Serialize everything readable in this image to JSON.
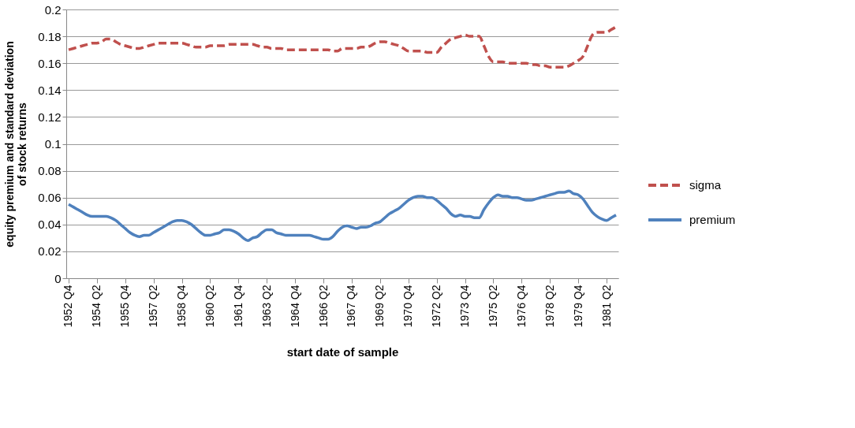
{
  "chart_data": {
    "type": "line",
    "xlabel": "start date of sample",
    "ylabel": "equity premium and standard deviation of stock returns",
    "categories": [
      "1952 Q4",
      null,
      null,
      null,
      null,
      null,
      "1954 Q2",
      null,
      null,
      null,
      null,
      null,
      "1955 Q4",
      null,
      null,
      null,
      null,
      null,
      "1957 Q2",
      null,
      null,
      null,
      null,
      null,
      "1958 Q4",
      null,
      null,
      null,
      null,
      null,
      "1960 Q2",
      null,
      null,
      null,
      null,
      null,
      "1961 Q4",
      null,
      null,
      null,
      null,
      null,
      "1963 Q2",
      null,
      null,
      null,
      null,
      null,
      "1964 Q4",
      null,
      null,
      null,
      null,
      null,
      "1966 Q2",
      null,
      null,
      null,
      null,
      null,
      "1967 Q4",
      null,
      null,
      null,
      null,
      null,
      "1969 Q2",
      null,
      null,
      null,
      null,
      null,
      "1970 Q4",
      null,
      null,
      null,
      null,
      null,
      "1972 Q2",
      null,
      null,
      null,
      null,
      null,
      "1973 Q4",
      null,
      null,
      null,
      null,
      null,
      "1975 Q2",
      null,
      null,
      null,
      null,
      null,
      "1976 Q4",
      null,
      null,
      null,
      null,
      null,
      "1978 Q2",
      null,
      null,
      null,
      null,
      null,
      "1979 Q4",
      null,
      null,
      null,
      null,
      null,
      "1981 Q2",
      null,
      null
    ],
    "series": [
      {
        "name": "sigma",
        "color": "#c0504d",
        "line_style": "dashed",
        "values": [
          0.17,
          0.171,
          0.172,
          0.173,
          0.174,
          0.175,
          0.175,
          0.176,
          0.178,
          0.178,
          0.176,
          0.174,
          0.173,
          0.172,
          0.171,
          0.171,
          0.172,
          0.173,
          0.174,
          0.175,
          0.175,
          0.175,
          0.175,
          0.175,
          0.175,
          0.174,
          0.173,
          0.172,
          0.172,
          0.172,
          0.173,
          0.173,
          0.173,
          0.173,
          0.174,
          0.174,
          0.174,
          0.174,
          0.174,
          0.174,
          0.173,
          0.172,
          0.172,
          0.171,
          0.171,
          0.171,
          0.17,
          0.17,
          0.17,
          0.17,
          0.17,
          0.17,
          0.17,
          0.17,
          0.17,
          0.17,
          0.169,
          0.169,
          0.171,
          0.171,
          0.171,
          0.171,
          0.172,
          0.172,
          0.173,
          0.175,
          0.176,
          0.176,
          0.175,
          0.174,
          0.173,
          0.171,
          0.169,
          0.169,
          0.169,
          0.169,
          0.168,
          0.168,
          0.168,
          0.172,
          0.175,
          0.178,
          0.179,
          0.18,
          0.181,
          0.18,
          0.18,
          0.18,
          0.173,
          0.165,
          0.161,
          0.161,
          0.161,
          0.16,
          0.16,
          0.16,
          0.16,
          0.16,
          0.159,
          0.159,
          0.158,
          0.158,
          0.157,
          0.157,
          0.157,
          0.157,
          0.158,
          0.16,
          0.162,
          0.165,
          0.173,
          0.181,
          0.183,
          0.183,
          0.183,
          0.185,
          0.187
        ]
      },
      {
        "name": "premium",
        "color": "#4f81bd",
        "line_style": "solid",
        "values": [
          0.055,
          0.053,
          0.051,
          0.049,
          0.047,
          0.046,
          0.046,
          0.046,
          0.046,
          0.045,
          0.043,
          0.04,
          0.037,
          0.034,
          0.032,
          0.031,
          0.032,
          0.032,
          0.034,
          0.036,
          0.038,
          0.04,
          0.042,
          0.043,
          0.043,
          0.042,
          0.04,
          0.037,
          0.034,
          0.032,
          0.032,
          0.033,
          0.034,
          0.036,
          0.036,
          0.035,
          0.033,
          0.03,
          0.028,
          0.03,
          0.031,
          0.034,
          0.036,
          0.036,
          0.034,
          0.033,
          0.032,
          0.032,
          0.032,
          0.032,
          0.032,
          0.032,
          0.031,
          0.03,
          0.029,
          0.029,
          0.031,
          0.035,
          0.038,
          0.039,
          0.038,
          0.037,
          0.038,
          0.038,
          0.039,
          0.041,
          0.042,
          0.045,
          0.048,
          0.05,
          0.052,
          0.055,
          0.058,
          0.06,
          0.061,
          0.061,
          0.06,
          0.06,
          0.058,
          0.055,
          0.052,
          0.048,
          0.046,
          0.047,
          0.046,
          0.046,
          0.045,
          0.045,
          0.051,
          0.056,
          0.06,
          0.062,
          0.061,
          0.061,
          0.06,
          0.06,
          0.059,
          0.058,
          0.058,
          0.059,
          0.06,
          0.061,
          0.062,
          0.063,
          0.064,
          0.064,
          0.065,
          0.063,
          0.062,
          0.059,
          0.054,
          0.049,
          0.046,
          0.044,
          0.043,
          0.045,
          0.047
        ]
      }
    ],
    "ylim": [
      0,
      0.2
    ],
    "yticks": [
      0,
      0.02,
      0.04,
      0.06,
      0.08,
      0.1,
      0.12,
      0.14,
      0.16,
      0.18,
      0.2
    ],
    "grid": "y",
    "legend": "right"
  }
}
